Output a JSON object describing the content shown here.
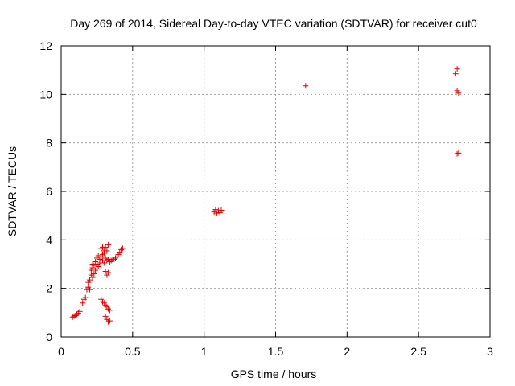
{
  "chart_data": {
    "type": "scatter",
    "title": "Day 269 of 2014, Sidereal Day-to-day VTEC variation (SDTVAR) for receiver cut0",
    "xlabel": "GPS time / hours",
    "ylabel": "SDTVAR / TECUs",
    "xlim": [
      0,
      3
    ],
    "ylim": [
      0,
      12
    ],
    "xticks": [
      0,
      0.5,
      1,
      1.5,
      2,
      2.5,
      3
    ],
    "xtick_labels": [
      "0",
      "0.5",
      "1",
      "1.5",
      "2",
      "2.5",
      "3"
    ],
    "yticks": [
      0,
      2,
      4,
      6,
      8,
      10,
      12
    ],
    "ytick_labels": [
      "0",
      "2",
      "4",
      "6",
      "8",
      "10",
      "12"
    ],
    "grid": true,
    "marker": "+",
    "color": "#e00000",
    "series": [
      {
        "name": "SDTVAR",
        "points": [
          [
            0.08,
            0.82
          ],
          [
            0.09,
            0.86
          ],
          [
            0.1,
            0.88
          ],
          [
            0.11,
            0.93
          ],
          [
            0.12,
            0.98
          ],
          [
            0.13,
            1.05
          ],
          [
            0.15,
            1.4
          ],
          [
            0.16,
            1.55
          ],
          [
            0.17,
            1.62
          ],
          [
            0.18,
            1.95
          ],
          [
            0.19,
            2.05
          ],
          [
            0.19,
            2.25
          ],
          [
            0.2,
            1.95
          ],
          [
            0.2,
            2.35
          ],
          [
            0.21,
            2.55
          ],
          [
            0.21,
            2.75
          ],
          [
            0.22,
            2.45
          ],
          [
            0.22,
            2.85
          ],
          [
            0.22,
            3.0
          ],
          [
            0.23,
            2.6
          ],
          [
            0.23,
            2.95
          ],
          [
            0.24,
            3.1
          ],
          [
            0.24,
            2.75
          ],
          [
            0.25,
            3.0
          ],
          [
            0.25,
            3.25
          ],
          [
            0.26,
            2.9
          ],
          [
            0.26,
            3.35
          ],
          [
            0.27,
            3.05
          ],
          [
            0.27,
            3.2
          ],
          [
            0.28,
            3.3
          ],
          [
            0.28,
            3.65
          ],
          [
            0.29,
            3.4
          ],
          [
            0.29,
            3.7
          ],
          [
            0.29,
            3.15
          ],
          [
            0.3,
            3.45
          ],
          [
            0.3,
            3.05
          ],
          [
            0.3,
            3.55
          ],
          [
            0.31,
            3.7
          ],
          [
            0.31,
            3.25
          ],
          [
            0.32,
            3.55
          ],
          [
            0.32,
            3.15
          ],
          [
            0.33,
            3.8
          ],
          [
            0.33,
            3.2
          ],
          [
            0.34,
            3.1
          ],
          [
            0.35,
            3.15
          ],
          [
            0.36,
            3.2
          ],
          [
            0.37,
            3.2
          ],
          [
            0.38,
            3.25
          ],
          [
            0.39,
            3.3
          ],
          [
            0.4,
            3.4
          ],
          [
            0.41,
            3.5
          ],
          [
            0.42,
            3.6
          ],
          [
            0.43,
            3.65
          ],
          [
            0.31,
            2.7
          ],
          [
            0.32,
            2.55
          ],
          [
            0.33,
            2.65
          ],
          [
            0.28,
            1.55
          ],
          [
            0.29,
            1.45
          ],
          [
            0.3,
            1.4
          ],
          [
            0.31,
            1.3
          ],
          [
            0.32,
            1.25
          ],
          [
            0.33,
            1.15
          ],
          [
            0.34,
            1.1
          ],
          [
            0.31,
            0.85
          ],
          [
            0.32,
            0.72
          ],
          [
            0.33,
            0.62
          ],
          [
            0.34,
            0.66
          ],
          [
            1.07,
            5.15
          ],
          [
            1.08,
            5.25
          ],
          [
            1.09,
            5.1
          ],
          [
            1.1,
            5.2
          ],
          [
            1.11,
            5.12
          ],
          [
            1.12,
            5.22
          ],
          [
            1.71,
            10.35
          ],
          [
            2.76,
            10.85
          ],
          [
            2.77,
            11.05
          ],
          [
            2.77,
            10.15
          ],
          [
            2.78,
            10.05
          ],
          [
            2.77,
            7.55
          ],
          [
            2.78,
            7.58
          ]
        ]
      }
    ]
  }
}
